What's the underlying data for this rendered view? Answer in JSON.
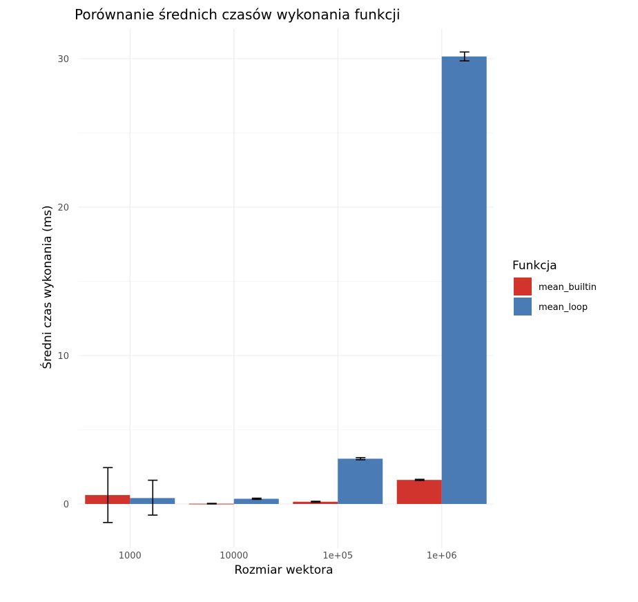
{
  "chart_data": {
    "type": "bar",
    "title": "Porównanie średnich czasów wykonania funkcji",
    "xlabel": "Rozmiar wektora",
    "ylabel": "Średni czas wykonania (ms)",
    "categories": [
      "1000",
      "10000",
      "1e+05",
      "1e+06"
    ],
    "ylim": [
      -2.7,
      32
    ],
    "yticks": [
      0,
      10,
      20,
      30
    ],
    "grid": true,
    "legend": {
      "title": "Funkcja",
      "position": "right"
    },
    "series": [
      {
        "name": "mean_builtin",
        "color": "#D0342C",
        "values": [
          0.6,
          0.02,
          0.15,
          1.62
        ],
        "error_low": [
          -1.25,
          0.0,
          0.12,
          1.58
        ],
        "error_high": [
          2.45,
          0.04,
          0.18,
          1.66
        ]
      },
      {
        "name": "mean_loop",
        "color": "#4A7BB4",
        "values": [
          0.4,
          0.35,
          3.05,
          30.15
        ],
        "error_low": [
          -0.75,
          0.31,
          2.98,
          29.85
        ],
        "error_high": [
          1.6,
          0.39,
          3.12,
          30.45
        ]
      }
    ]
  }
}
